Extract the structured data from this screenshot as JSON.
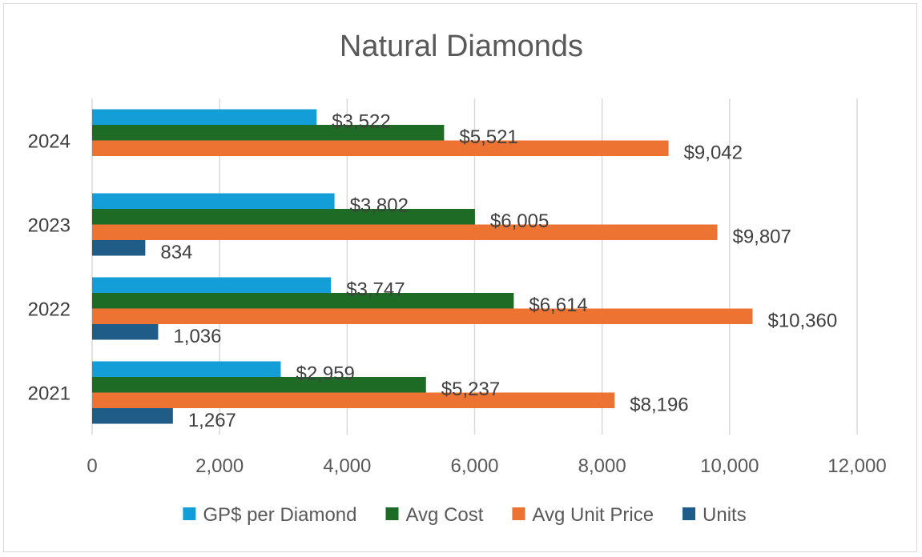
{
  "chart_data": {
    "type": "bar",
    "orientation": "horizontal",
    "title": "Natural Diamonds",
    "categories": [
      "2021",
      "2022",
      "2023",
      "2024"
    ],
    "series": [
      {
        "name": "Units",
        "color": "#1f5c87",
        "values": [
          1267,
          1036,
          834,
          null
        ],
        "labels": [
          "1,267",
          "1,036",
          "834",
          ""
        ]
      },
      {
        "name": "Avg Unit Price",
        "color": "#ed7333",
        "values": [
          8196,
          10360,
          9807,
          9042
        ],
        "labels": [
          "$8,196",
          "$10,360",
          "$9,807",
          "$9,042"
        ]
      },
      {
        "name": "Avg Cost",
        "color": "#1d6b25",
        "values": [
          5237,
          6614,
          6005,
          5521
        ],
        "labels": [
          "$5,237",
          "$6,614",
          "$6,005",
          "$5,521"
        ]
      },
      {
        "name": "GP$ per Diamond",
        "color": "#139ed8",
        "values": [
          2959,
          3747,
          3802,
          3522
        ],
        "labels": [
          "$2,959",
          "$3,747",
          "$3,802",
          "$3,522"
        ]
      }
    ],
    "xlim": [
      0,
      12000
    ],
    "xticks": [
      0,
      2000,
      4000,
      6000,
      8000,
      10000,
      12000
    ],
    "xtick_labels": [
      "0",
      "2,000",
      "4,000",
      "6,000",
      "8,000",
      "10,000",
      "12,000"
    ],
    "grid": true,
    "legend_position": "bottom",
    "legend_order": [
      "GP$ per Diamond",
      "Avg Cost",
      "Avg Unit Price",
      "Units"
    ]
  }
}
